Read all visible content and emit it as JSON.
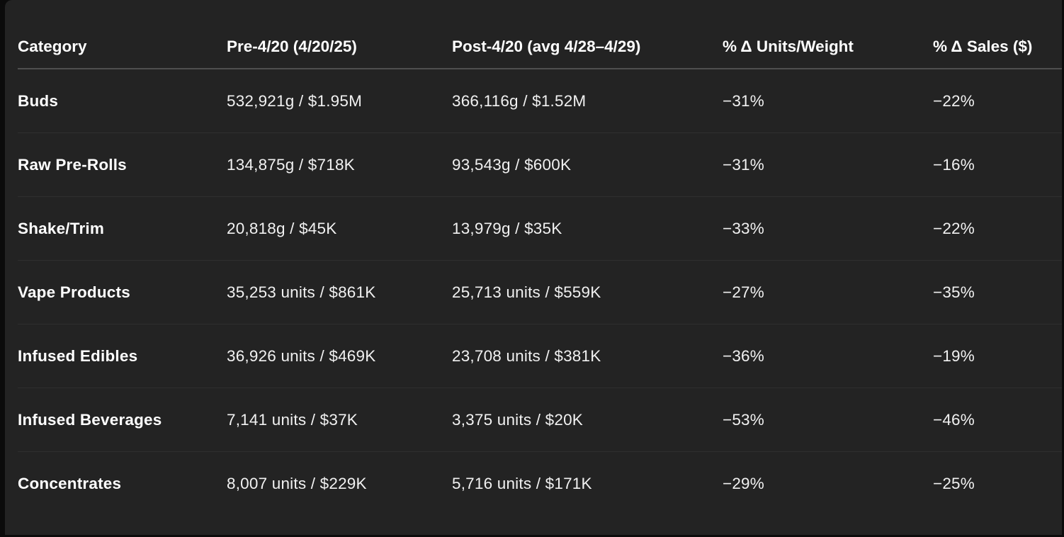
{
  "colors": {
    "panel_background": "#232323",
    "outer_background": "#0b0b0b",
    "header_divider": "#4f4f4f",
    "row_divider": "#2f2f2f",
    "header_text": "#ffffff",
    "value_text": "#f1f1f1"
  },
  "table": {
    "columns": [
      {
        "key": "category",
        "label": "Category"
      },
      {
        "key": "pre",
        "label": "Pre-4/20 (4/20/25)"
      },
      {
        "key": "post",
        "label": "Post-4/20 (avg 4/28–4/29)"
      },
      {
        "key": "delta_units",
        "label": "% Δ Units/Weight"
      },
      {
        "key": "delta_sales",
        "label": "% Δ Sales ($)"
      }
    ],
    "rows": [
      {
        "category": "Buds",
        "pre": "532,921g / $1.95M",
        "post": "366,116g / $1.52M",
        "delta_units": "−31%",
        "delta_sales": "−22%"
      },
      {
        "category": "Raw Pre-Rolls",
        "pre": "134,875g / $718K",
        "post": "93,543g / $600K",
        "delta_units": "−31%",
        "delta_sales": "−16%"
      },
      {
        "category": "Shake/Trim",
        "pre": "20,818g / $45K",
        "post": "13,979g / $35K",
        "delta_units": "−33%",
        "delta_sales": "−22%"
      },
      {
        "category": "Vape Products",
        "pre": "35,253 units / $861K",
        "post": "25,713 units / $559K",
        "delta_units": "−27%",
        "delta_sales": "−35%"
      },
      {
        "category": "Infused Edibles",
        "pre": "36,926 units / $469K",
        "post": "23,708 units / $381K",
        "delta_units": "−36%",
        "delta_sales": "−19%"
      },
      {
        "category": "Infused Beverages",
        "pre": "7,141 units / $37K",
        "post": "3,375 units / $20K",
        "delta_units": "−53%",
        "delta_sales": "−46%"
      },
      {
        "category": "Concentrates",
        "pre": "8,007 units / $229K",
        "post": "5,716 units / $171K",
        "delta_units": "−29%",
        "delta_sales": "−25%"
      }
    ]
  },
  "chart_data": {
    "type": "table",
    "title": "",
    "columns": [
      "Category",
      "Pre-4/20 (4/20/25)",
      "Post-4/20 (avg 4/28–4/29)",
      "% Δ Units/Weight",
      "% Δ Sales ($)"
    ],
    "rows": [
      [
        "Buds",
        "532,921g / $1.95M",
        "366,116g / $1.52M",
        -31,
        -22
      ],
      [
        "Raw Pre-Rolls",
        "134,875g / $718K",
        "93,543g / $600K",
        -31,
        -16
      ],
      [
        "Shake/Trim",
        "20,818g / $45K",
        "13,979g / $35K",
        -33,
        -22
      ],
      [
        "Vape Products",
        "35,253 units / $861K",
        "25,713 units / $559K",
        -27,
        -35
      ],
      [
        "Infused Edibles",
        "36,926 units / $469K",
        "23,708 units / $381K",
        -36,
        -19
      ],
      [
        "Infused Beverages",
        "7,141 units / $37K",
        "3,375 units / $20K",
        -53,
        -46
      ],
      [
        "Concentrates",
        "8,007 units / $229K",
        "5,716 units / $171K",
        -29,
        -25
      ]
    ]
  }
}
